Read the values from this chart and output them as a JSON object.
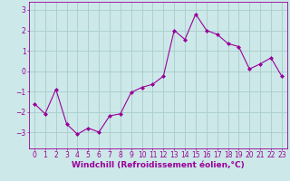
{
  "x": [
    0,
    1,
    2,
    3,
    4,
    5,
    6,
    7,
    8,
    9,
    10,
    11,
    12,
    13,
    14,
    15,
    16,
    17,
    18,
    19,
    20,
    21,
    22,
    23
  ],
  "y": [
    -1.6,
    -2.1,
    -0.9,
    -2.6,
    -3.1,
    -2.8,
    -3.0,
    -2.2,
    -2.1,
    -1.05,
    -0.8,
    -0.65,
    -0.25,
    2.0,
    1.55,
    2.8,
    2.0,
    1.8,
    1.35,
    1.2,
    0.1,
    0.35,
    0.65,
    -0.25
  ],
  "line_color": "#990099",
  "marker": "D",
  "marker_size": 2.0,
  "bg_color": "#cce8e8",
  "grid_color": "#aacccc",
  "xlabel": "Windchill (Refroidissement éolien,°C)",
  "xlabel_fontsize": 6.5,
  "tick_fontsize": 5.5,
  "ylim": [
    -3.8,
    3.4
  ],
  "yticks": [
    -3,
    -2,
    -1,
    0,
    1,
    2,
    3
  ],
  "xlim": [
    -0.5,
    23.5
  ],
  "xticks": [
    0,
    1,
    2,
    3,
    4,
    5,
    6,
    7,
    8,
    9,
    10,
    11,
    12,
    13,
    14,
    15,
    16,
    17,
    18,
    19,
    20,
    21,
    22,
    23
  ]
}
